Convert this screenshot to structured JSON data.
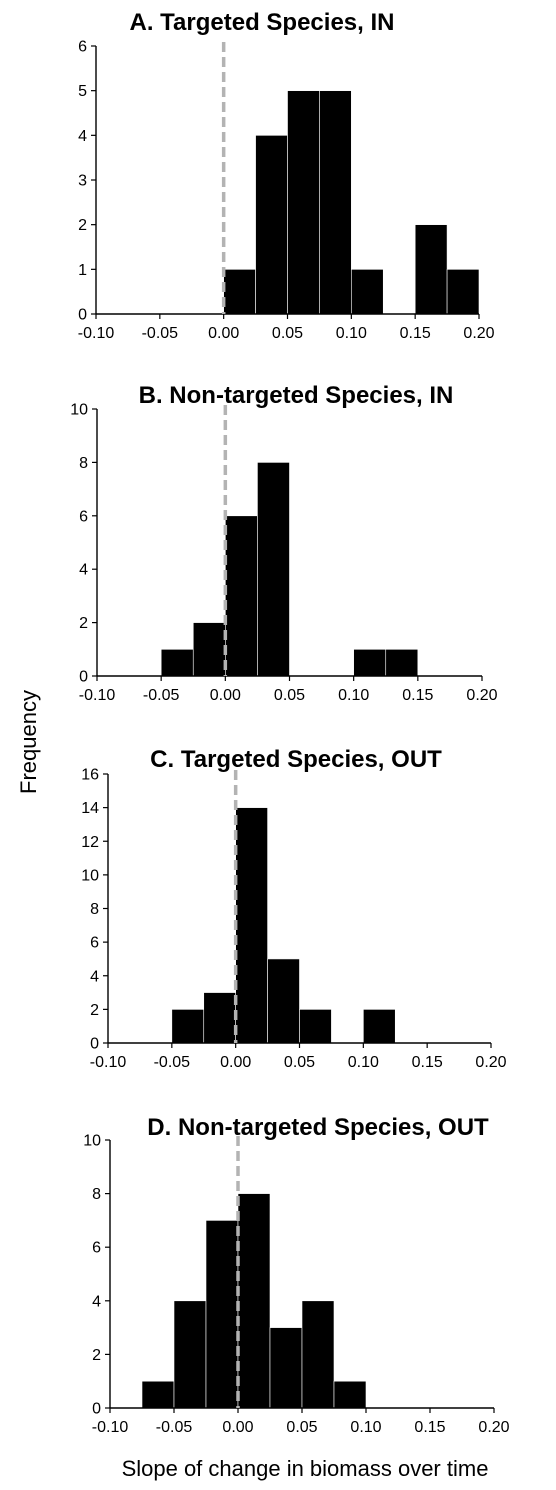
{
  "figure": {
    "shared_ylabel": "Frequency",
    "shared_xlabel": "Slope of change in biomass over time"
  },
  "chart_data": [
    {
      "type": "bar",
      "title": "A. Targeted Species, IN",
      "xlabel": "",
      "ylabel": "",
      "xlim": [
        -0.1,
        0.2
      ],
      "ylim": [
        0,
        6
      ],
      "x_ticks": [
        "-0.10",
        "-0.05",
        "0.00",
        "0.05",
        "0.10",
        "0.15",
        "0.20"
      ],
      "y_ticks": [
        "0",
        "1",
        "2",
        "3",
        "4",
        "5",
        "6"
      ],
      "bin_width": 0.025,
      "bins": [
        {
          "start": 0.0,
          "value": 1
        },
        {
          "start": 0.025,
          "value": 4
        },
        {
          "start": 0.05,
          "value": 5
        },
        {
          "start": 0.075,
          "value": 5
        },
        {
          "start": 0.1,
          "value": 1
        },
        {
          "start": 0.125,
          "value": 0
        },
        {
          "start": 0.15,
          "value": 2
        },
        {
          "start": 0.175,
          "value": 1
        }
      ],
      "reference_line": {
        "x": 0.0,
        "color": "#b3b3b3",
        "style": "dashed"
      },
      "bar_color": "#000000"
    },
    {
      "type": "bar",
      "title": "B. Non-targeted Species, IN",
      "xlabel": "",
      "ylabel": "",
      "xlim": [
        -0.1,
        0.2
      ],
      "ylim": [
        0,
        10
      ],
      "x_ticks": [
        "-0.10",
        "-0.05",
        "0.00",
        "0.05",
        "0.10",
        "0.15",
        "0.20"
      ],
      "y_ticks": [
        "0",
        "2",
        "4",
        "6",
        "8",
        "10"
      ],
      "bin_width": 0.025,
      "bins": [
        {
          "start": -0.05,
          "value": 1
        },
        {
          "start": -0.025,
          "value": 2
        },
        {
          "start": 0.0,
          "value": 6
        },
        {
          "start": 0.025,
          "value": 8
        },
        {
          "start": 0.05,
          "value": 0
        },
        {
          "start": 0.075,
          "value": 0
        },
        {
          "start": 0.1,
          "value": 1
        },
        {
          "start": 0.125,
          "value": 1
        }
      ],
      "reference_line": {
        "x": 0.0,
        "color": "#b3b3b3",
        "style": "dashed"
      },
      "bar_color": "#000000"
    },
    {
      "type": "bar",
      "title": "C. Targeted Species, OUT",
      "xlabel": "",
      "ylabel": "",
      "xlim": [
        -0.1,
        0.2
      ],
      "ylim": [
        0,
        16
      ],
      "x_ticks": [
        "-0.10",
        "-0.05",
        "0.00",
        "0.05",
        "0.10",
        "0.15",
        "0.20"
      ],
      "y_ticks": [
        "0",
        "2",
        "4",
        "6",
        "8",
        "10",
        "12",
        "14",
        "16"
      ],
      "bin_width": 0.025,
      "bins": [
        {
          "start": -0.05,
          "value": 2
        },
        {
          "start": -0.025,
          "value": 3
        },
        {
          "start": 0.0,
          "value": 14
        },
        {
          "start": 0.025,
          "value": 5
        },
        {
          "start": 0.05,
          "value": 2
        },
        {
          "start": 0.075,
          "value": 0
        },
        {
          "start": 0.1,
          "value": 2
        }
      ],
      "reference_line": {
        "x": 0.0,
        "color": "#b3b3b3",
        "style": "dashed"
      },
      "bar_color": "#000000"
    },
    {
      "type": "bar",
      "title": "D. Non-targeted Species, OUT",
      "xlabel": "",
      "ylabel": "",
      "xlim": [
        -0.1,
        0.2
      ],
      "ylim": [
        0,
        10
      ],
      "x_ticks": [
        "-0.10",
        "-0.05",
        "0.00",
        "0.05",
        "0.10",
        "0.15",
        "0.20"
      ],
      "y_ticks": [
        "0",
        "2",
        "4",
        "6",
        "8",
        "10"
      ],
      "bin_width": 0.025,
      "bins": [
        {
          "start": -0.075,
          "value": 1
        },
        {
          "start": -0.05,
          "value": 4
        },
        {
          "start": -0.025,
          "value": 7
        },
        {
          "start": 0.0,
          "value": 8
        },
        {
          "start": 0.025,
          "value": 3
        },
        {
          "start": 0.05,
          "value": 4
        },
        {
          "start": 0.075,
          "value": 1
        }
      ],
      "reference_line": {
        "x": 0.0,
        "color": "#b3b3b3",
        "style": "dashed"
      },
      "bar_color": "#000000"
    }
  ]
}
